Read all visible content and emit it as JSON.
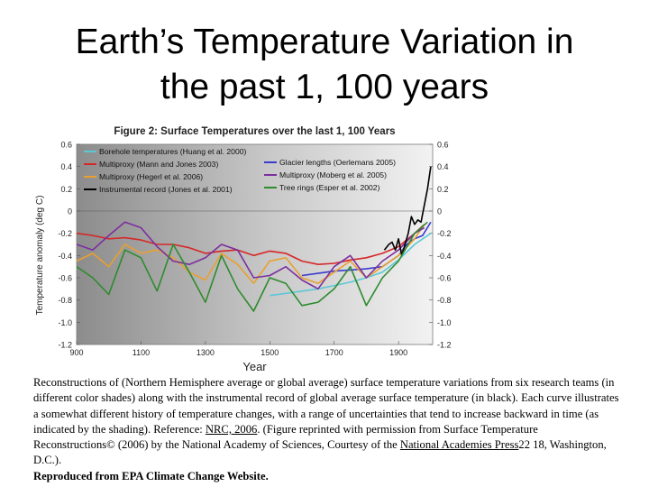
{
  "slide": {
    "title_line1": "Earth’s Temperature Variation in",
    "title_line2": "the past 1, 100 years"
  },
  "chart_data": {
    "type": "line",
    "title": "Figure 2: Surface Temperatures over the last 1, 100 Years",
    "xlabel": "Year",
    "ylabel": "Temperature anomaly (deg C)",
    "xlim": [
      900,
      2006
    ],
    "ylim": [
      -1.2,
      0.6
    ],
    "x_ticks": [
      900,
      1100,
      1300,
      1500,
      1700,
      1900
    ],
    "y_ticks_left": [
      "0.6",
      "0.4",
      "0.2",
      "0",
      "-0.2",
      "-0.4",
      "-0.6",
      "-0.8",
      "-1.0",
      "-1.2"
    ],
    "y_ticks_right": [
      "0.6",
      "0.4",
      "0.2",
      "0",
      "-0.2",
      "-0.4",
      "-0.6",
      "-0.8",
      "-1.0",
      "-1.2"
    ],
    "background": "gray gradient shading (uncertainty)",
    "legend": [
      {
        "label": "Borehole temperatures (Huang et al. 2000)",
        "color": "#5bc8d6"
      },
      {
        "label": "Multiproxy (Mann and Jones 2003)",
        "color": "#d62728"
      },
      {
        "label": "Glacier lengths (Oerlemans 2005)",
        "color": "#3a3ad0"
      },
      {
        "label": "Multiproxy (Hegerl et al. 2006)",
        "color": "#e8a030"
      },
      {
        "label": "Multiproxy (Moberg et al. 2005)",
        "color": "#7b2f9e"
      },
      {
        "label": "Instrumental record (Jones et al. 2001)",
        "color": "#000000"
      },
      {
        "label": "Tree rings (Esper et al. 2002)",
        "color": "#2e8b2e"
      }
    ],
    "series": [
      {
        "name": "Borehole temperatures (Huang et al. 2000)",
        "color": "#5bc8d6",
        "x": [
          1500,
          1550,
          1600,
          1650,
          1700,
          1750,
          1800,
          1850,
          1900,
          1950,
          2000
        ],
        "y": [
          -0.76,
          -0.74,
          -0.72,
          -0.7,
          -0.67,
          -0.64,
          -0.6,
          -0.55,
          -0.44,
          -0.3,
          -0.2
        ]
      },
      {
        "name": "Multiproxy (Mann and Jones 2003)",
        "color": "#d62728",
        "x": [
          200,
          900,
          950,
          1000,
          1050,
          1100,
          1150,
          1200,
          1250,
          1300,
          1350,
          1400,
          1450,
          1500,
          1550,
          1600,
          1650,
          1700,
          1750,
          1800,
          1850,
          1900,
          1950,
          1980
        ],
        "y": [
          0,
          -0.2,
          -0.22,
          -0.25,
          -0.24,
          -0.26,
          -0.3,
          -0.3,
          -0.33,
          -0.38,
          -0.36,
          -0.35,
          -0.4,
          -0.36,
          -0.38,
          -0.45,
          -0.48,
          -0.47,
          -0.44,
          -0.42,
          -0.38,
          -0.32,
          -0.2,
          -0.12
        ]
      },
      {
        "name": "Glacier lengths (Oerlemans 2005)",
        "color": "#3a3ad0",
        "x": [
          1600,
          1650,
          1700,
          1750,
          1800,
          1850,
          1875,
          1900,
          1925,
          1950,
          1975,
          2000
        ],
        "y": [
          -0.58,
          -0.56,
          -0.54,
          -0.53,
          -0.52,
          -0.5,
          -0.45,
          -0.4,
          -0.3,
          -0.25,
          -0.22,
          -0.1
        ]
      },
      {
        "name": "Multiproxy (Hegerl et al. 2006)",
        "color": "#e8a030",
        "x": [
          900,
          950,
          1000,
          1050,
          1100,
          1150,
          1200,
          1250,
          1300,
          1350,
          1400,
          1450,
          1500,
          1550,
          1600,
          1650,
          1700,
          1750,
          1800,
          1850,
          1900,
          1950,
          1980
        ],
        "y": [
          -0.45,
          -0.38,
          -0.5,
          -0.3,
          -0.38,
          -0.35,
          -0.42,
          -0.55,
          -0.62,
          -0.38,
          -0.48,
          -0.65,
          -0.45,
          -0.42,
          -0.6,
          -0.65,
          -0.55,
          -0.45,
          -0.6,
          -0.5,
          -0.4,
          -0.25,
          -0.12
        ]
      },
      {
        "name": "Multiproxy (Moberg et al. 2005)",
        "color": "#7b2f9e",
        "x": [
          900,
          950,
          1000,
          1050,
          1100,
          1150,
          1200,
          1250,
          1300,
          1350,
          1400,
          1450,
          1500,
          1550,
          1600,
          1650,
          1700,
          1750,
          1800,
          1850,
          1900,
          1950,
          1980
        ],
        "y": [
          -0.3,
          -0.35,
          -0.22,
          -0.1,
          -0.15,
          -0.32,
          -0.45,
          -0.48,
          -0.42,
          -0.3,
          -0.35,
          -0.6,
          -0.58,
          -0.5,
          -0.62,
          -0.7,
          -0.5,
          -0.4,
          -0.6,
          -0.45,
          -0.35,
          -0.2,
          -0.15
        ]
      },
      {
        "name": "Instrumental record (Jones et al. 2001)",
        "color": "#000000",
        "x": [
          1856,
          1870,
          1880,
          1890,
          1900,
          1910,
          1920,
          1930,
          1940,
          1950,
          1960,
          1970,
          1980,
          1990,
          2000
        ],
        "y": [
          -0.35,
          -0.3,
          -0.28,
          -0.35,
          -0.25,
          -0.4,
          -0.3,
          -0.2,
          -0.05,
          -0.12,
          -0.08,
          -0.1,
          0.05,
          0.2,
          0.4
        ]
      },
      {
        "name": "Tree rings (Esper et al. 2002)",
        "color": "#2e8b2e",
        "x": [
          900,
          950,
          1000,
          1050,
          1100,
          1150,
          1200,
          1250,
          1300,
          1350,
          1400,
          1450,
          1500,
          1550,
          1600,
          1650,
          1700,
          1750,
          1800,
          1850,
          1900,
          1950,
          1990
        ],
        "y": [
          -0.5,
          -0.6,
          -0.75,
          -0.35,
          -0.42,
          -0.72,
          -0.3,
          -0.55,
          -0.82,
          -0.4,
          -0.7,
          -0.9,
          -0.6,
          -0.65,
          -0.85,
          -0.82,
          -0.7,
          -0.5,
          -0.85,
          -0.6,
          -0.45,
          -0.2,
          -0.1
        ]
      }
    ]
  },
  "caption": {
    "part1": "Reconstructions of (Northern Hemisphere average or global average) surface temperature variations from six research teams (in different color shades) along with the instrumental record of global average surface temperature (in black). Each curve illustrates a somewhat different history of temperature changes, with a range of uncertainties that tend to increase backward in time (as indicated by the shading). Reference: ",
    "link1": "NRC, 2006",
    "part2": ". (Figure reprinted with permission from Surface Temperature Reconstructions© (2006) by the National Academy of Sciences, Courtesy of the ",
    "link2": "National Academies Press",
    "part3": "22 ",
    "link3": " ",
    "part4": "18, Washington, D.C.).",
    "source": "Reproduced from EPA Climate Change Website."
  }
}
